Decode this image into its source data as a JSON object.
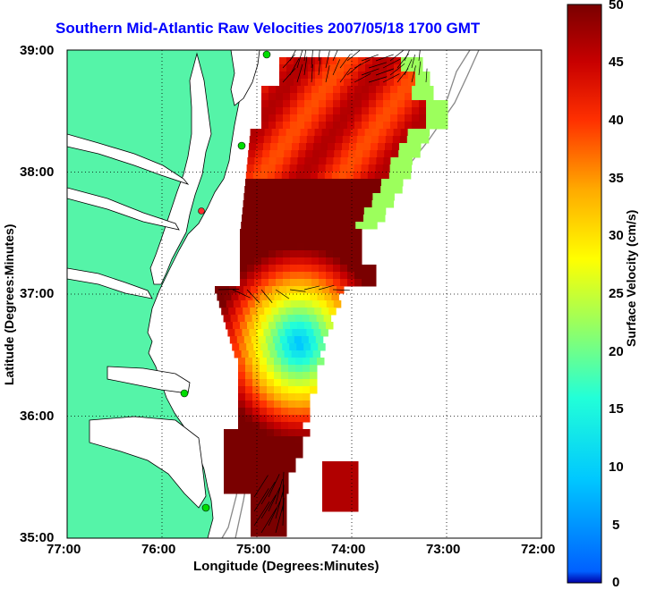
{
  "title": "Southern Mid-Atlantic Raw Velocities 2007/05/18 1700 GMT",
  "axes": {
    "xlabel": "Longitude (Degrees:Minutes)",
    "ylabel": "Latitude (Degrees:Minutes)",
    "x_ticks": [
      "77:00",
      "76:00",
      "75:00",
      "74:00",
      "73:00",
      "72:00"
    ],
    "y_ticks": [
      "39:00",
      "38:00",
      "37:00",
      "36:00",
      "35:00"
    ]
  },
  "colorbar": {
    "label": "Surface Velocity (cm/s)",
    "ticks": [
      "50",
      "45",
      "40",
      "35",
      "30",
      "25",
      "20",
      "15",
      "10",
      "5",
      "0"
    ],
    "range": [
      0,
      50
    ]
  },
  "colors": {
    "land": "#55f4a8",
    "coast": "#000000",
    "title": "#0000ff",
    "station": "#00dd00",
    "station_alt": "#ff0000"
  }
}
